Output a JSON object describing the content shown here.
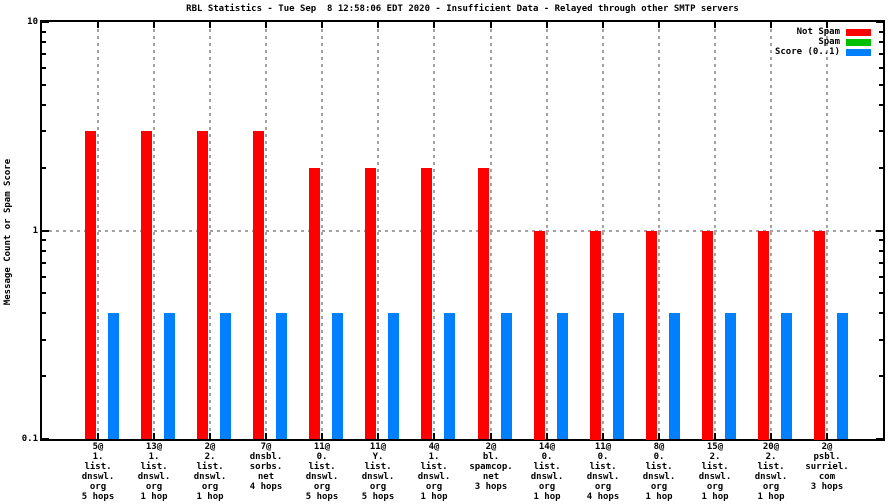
{
  "chart_data": {
    "type": "bar",
    "title": "RBL Statistics - Tue Sep  8 12:58:06 EDT 2020 - Insufficient Data - Relayed through other SMTP servers",
    "ylabel": "Message Count or Spam Score",
    "xlabel": "",
    "y_scale": "log",
    "ylim": [
      0.1,
      10
    ],
    "yticks": [
      {
        "label": "10",
        "value": 10
      },
      {
        "label": "1",
        "value": 1
      },
      {
        "label": "0.1",
        "value": 0.1
      }
    ],
    "grid": true,
    "legend_position": "top-right-inside",
    "categories": [
      [
        "5@",
        "1.",
        "list.",
        "dnswl.",
        "org",
        "5 hops"
      ],
      [
        "13@",
        "1.",
        "list.",
        "dnswl.",
        "org",
        "1 hop"
      ],
      [
        "2@",
        "2.",
        "list.",
        "dnswl.",
        "org",
        "1 hop"
      ],
      [
        "7@",
        "dnsbl.",
        "sorbs.",
        "net",
        "4 hops"
      ],
      [
        "11@",
        "0.",
        "list.",
        "dnswl.",
        "org",
        "5 hops"
      ],
      [
        "11@",
        "Y.",
        "list.",
        "dnswl.",
        "org",
        "5 hops"
      ],
      [
        "4@",
        "1.",
        "list.",
        "dnswl.",
        "org",
        "1 hop"
      ],
      [
        "2@",
        "bl.",
        "spamcop.",
        "net",
        "3 hops"
      ],
      [
        "14@",
        "0.",
        "list.",
        "dnswl.",
        "org",
        "1 hop"
      ],
      [
        "11@",
        "0.",
        "list.",
        "dnswl.",
        "org",
        "4 hops"
      ],
      [
        "8@",
        "0.",
        "list.",
        "dnswl.",
        "org",
        "1 hop"
      ],
      [
        "15@",
        "2.",
        "list.",
        "dnswl.",
        "org",
        "1 hop"
      ],
      [
        "20@",
        "2.",
        "list.",
        "dnswl.",
        "org",
        "1 hop"
      ],
      [
        "2@",
        "psbl.",
        "surriel.",
        "com",
        "3 hops"
      ]
    ],
    "series": [
      {
        "name": "Not Spam",
        "color": "#ff0000",
        "values": [
          3,
          3,
          3,
          3,
          2,
          2,
          2,
          2,
          1,
          1,
          1,
          1,
          1,
          1
        ]
      },
      {
        "name": "Spam",
        "color": "#00c000",
        "values": [
          0,
          0,
          0,
          0,
          0,
          0,
          0,
          0,
          0,
          0,
          0,
          0,
          0,
          0
        ]
      },
      {
        "name": "Score (0..1)",
        "color": "#0080ff",
        "values": [
          0.4,
          0.4,
          0.4,
          0.4,
          0.4,
          0.4,
          0.4,
          0.4,
          0.4,
          0.4,
          0.4,
          0.4,
          0.4,
          0.4
        ]
      }
    ],
    "colors": {
      "background": "#ffffff",
      "border": "#000000",
      "grid": "#a2a2a2",
      "text": "#000000"
    }
  }
}
